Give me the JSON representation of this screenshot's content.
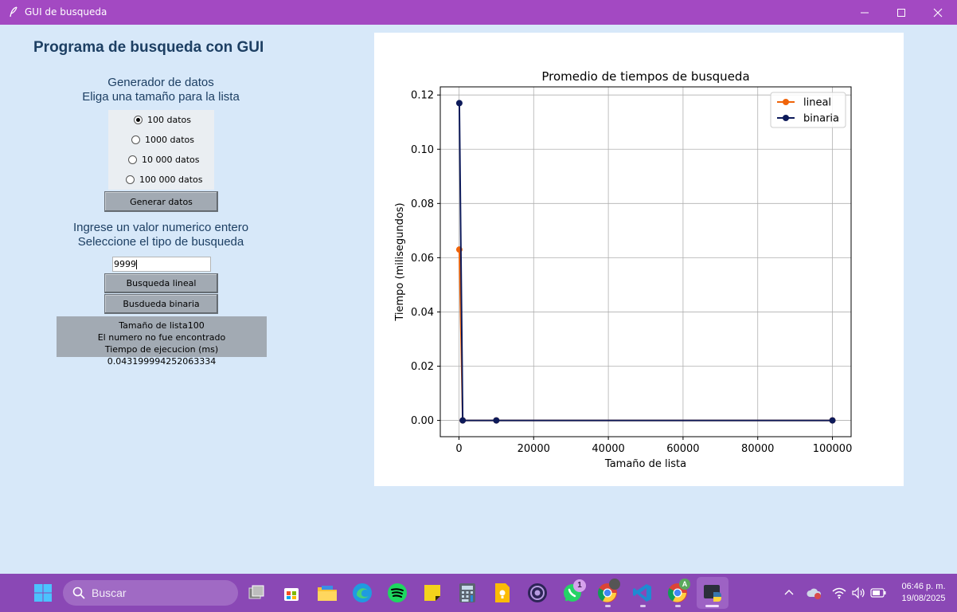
{
  "window": {
    "title": "GUI de busqueda"
  },
  "left": {
    "heading": "Programa de busqueda con GUI",
    "generator_line1": "Generador de datos",
    "generator_line2": "Eliga una tamaño para la lista",
    "sizes": [
      {
        "label": "100 datos",
        "selected": true
      },
      {
        "label": "1000 datos",
        "selected": false
      },
      {
        "label": "10 000 datos",
        "selected": false
      },
      {
        "label": "100 000 datos",
        "selected": false
      }
    ],
    "generate_button": "Generar datos",
    "search_line1": "Ingrese un valor numerico entero",
    "search_line2": "Seleccione el tipo de busqueda",
    "input_value": "9999",
    "linear_button": "Busqueda lineal",
    "binary_button": "Busdueda binaria",
    "result_line1": "Tamaño de lista100",
    "result_line2": "El numero no fue encontrado",
    "result_line3": "Tiempo de ejecucion (ms) 0.043199994252063334"
  },
  "taskbar": {
    "search_placeholder": "Buscar",
    "time": "06:46 p. m.",
    "date": "19/08/2025",
    "whatsapp_badge": "1",
    "chrome_profile_badge": "A"
  },
  "colors": {
    "titlebar": "#a349c2",
    "background": "#d7e8f9",
    "lineal": "#f0640a",
    "binaria": "#0d1a5a"
  },
  "chart_data": {
    "type": "line",
    "title": "Promedio de tiempos de busqueda",
    "xlabel": "Tamaño de lista",
    "ylabel": "Tiempo (milisegundos)",
    "xlim": [
      -5000,
      105000
    ],
    "ylim": [
      -0.006,
      0.123
    ],
    "xticks": [
      0,
      20000,
      40000,
      60000,
      80000,
      100000
    ],
    "yticks": [
      0.0,
      0.02,
      0.04,
      0.06,
      0.08,
      0.1,
      0.12
    ],
    "ytick_labels": [
      "0.00",
      "0.02",
      "0.04",
      "0.06",
      "0.08",
      "0.10",
      "0.12"
    ],
    "grid": true,
    "legend": "top-right",
    "series": [
      {
        "name": "lineal",
        "color": "#f0640a",
        "x": [
          100,
          1000,
          10000,
          100000
        ],
        "y": [
          0.063,
          0.0,
          0.0,
          0.0
        ]
      },
      {
        "name": "binaria",
        "color": "#0d1a5a",
        "x": [
          100,
          1000,
          10000,
          100000
        ],
        "y": [
          0.117,
          0.0,
          0.0,
          0.0
        ]
      }
    ]
  }
}
